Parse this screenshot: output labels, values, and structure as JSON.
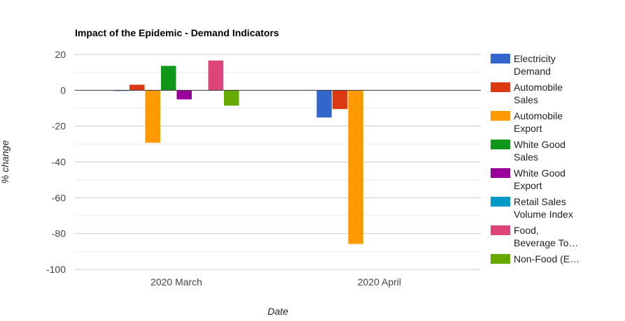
{
  "chart_data": {
    "type": "bar",
    "title": "Impact of the Epidemic - Demand Indicators",
    "xlabel": "Date",
    "ylabel": "% change",
    "ylim": [
      -100,
      20
    ],
    "yticks": [
      "20",
      "0",
      "-20",
      "-40",
      "-60",
      "-80",
      "-100"
    ],
    "ytick_values": [
      20,
      0,
      -20,
      -40,
      -60,
      -80,
      -100
    ],
    "minor_gridlines": true,
    "legend_position": "right",
    "categories": [
      "2020 March",
      "2020 April"
    ],
    "series": [
      {
        "name": "Electricity Demand",
        "legend_lines": [
          "Electricity",
          "Demand"
        ],
        "color": "#3366cc",
        "values": [
          -0.3,
          -15.2
        ]
      },
      {
        "name": "Automobile Sales",
        "legend_lines": [
          "Automobile",
          "Sales"
        ],
        "color": "#dc3912",
        "values": [
          3.1,
          -10.5
        ]
      },
      {
        "name": "Automobile Export",
        "legend_lines": [
          "Automobile",
          "Export"
        ],
        "color": "#ff9900",
        "values": [
          -29.3,
          -85.8
        ]
      },
      {
        "name": "White Good Sales",
        "legend_lines": [
          "White Good",
          "Sales"
        ],
        "color": "#109618",
        "values": [
          13.6,
          0
        ]
      },
      {
        "name": "White Good Export",
        "legend_lines": [
          "White Good",
          "Export"
        ],
        "color": "#990099",
        "values": [
          -5.1,
          0
        ]
      },
      {
        "name": "Retail Sales Volume Index",
        "legend_lines": [
          "Retail Sales",
          "Volume Index"
        ],
        "color": "#0099c6",
        "values": [
          0,
          0
        ]
      },
      {
        "name": "Food, Beverage To…",
        "legend_lines": [
          "Food,",
          "Beverage To…"
        ],
        "color": "#dd4477",
        "values": [
          16.6,
          0
        ]
      },
      {
        "name": "Non-Food (E…",
        "legend_lines": [
          "Non-Food (E…"
        ],
        "color": "#66aa00",
        "values": [
          -8.6,
          0
        ]
      }
    ]
  }
}
